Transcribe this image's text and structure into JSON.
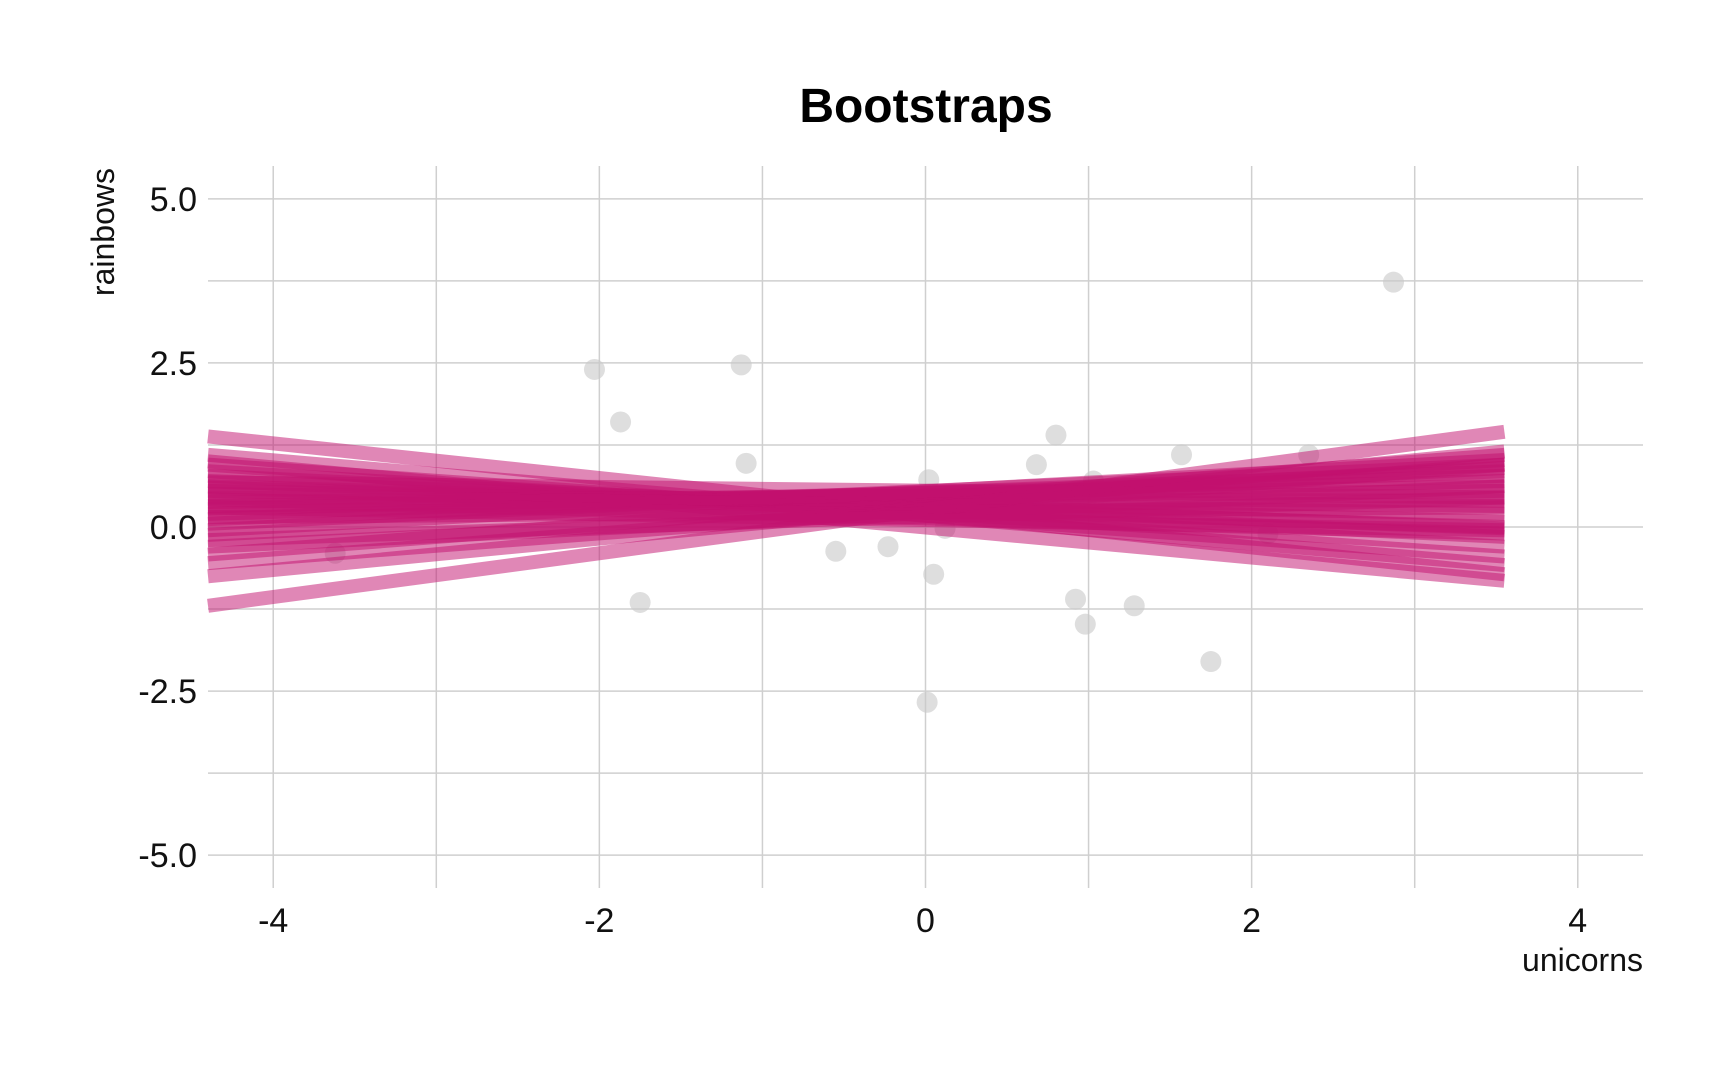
{
  "chart_data": {
    "type": "scatter",
    "title": "Bootstraps",
    "xlabel": "unicorns",
    "ylabel": "rainbows",
    "xlim": [
      -4.4,
      4.4
    ],
    "ylim": [
      -5.5,
      5.5
    ],
    "x_ticks": [
      {
        "value": -4,
        "label": "-4"
      },
      {
        "value": -2,
        "label": "-2"
      },
      {
        "value": 0,
        "label": "0"
      },
      {
        "value": 2,
        "label": "2"
      },
      {
        "value": 4,
        "label": "4"
      }
    ],
    "y_ticks": [
      {
        "value": 5,
        "label": "5.0"
      },
      {
        "value": 2.5,
        "label": "2.5"
      },
      {
        "value": 0,
        "label": "0.0"
      },
      {
        "value": -2.5,
        "label": "-2.5"
      },
      {
        "value": -5,
        "label": "-5.0"
      }
    ],
    "grid": true,
    "colors": {
      "points": "#c8c8c8",
      "lines": "#c2106e",
      "grid": "#cfcfcf"
    },
    "points": [
      {
        "x": -3.62,
        "y": -0.4
      },
      {
        "x": -2.03,
        "y": 2.4
      },
      {
        "x": -1.87,
        "y": 1.6
      },
      {
        "x": -1.75,
        "y": -1.15
      },
      {
        "x": -1.13,
        "y": 2.47
      },
      {
        "x": -1.1,
        "y": 0.97
      },
      {
        "x": -0.55,
        "y": -0.37
      },
      {
        "x": -0.23,
        "y": -0.3
      },
      {
        "x": 0.02,
        "y": 0.72
      },
      {
        "x": 0.05,
        "y": -0.72
      },
      {
        "x": 0.12,
        "y": -0.02
      },
      {
        "x": 0.01,
        "y": -2.67
      },
      {
        "x": 0.68,
        "y": 0.95
      },
      {
        "x": 0.8,
        "y": 1.4
      },
      {
        "x": 0.92,
        "y": -1.1
      },
      {
        "x": 0.98,
        "y": -1.48
      },
      {
        "x": 1.03,
        "y": 0.7
      },
      {
        "x": 1.28,
        "y": -1.2
      },
      {
        "x": 1.57,
        "y": 1.1
      },
      {
        "x": 1.75,
        "y": -2.05
      },
      {
        "x": 2.1,
        "y": -0.1
      },
      {
        "x": 2.35,
        "y": 1.1
      },
      {
        "x": 2.87,
        "y": 3.73
      }
    ],
    "fit_line_x_range": [
      -4.4,
      3.55
    ],
    "bootstrap_lines": [
      {
        "y_start": 1.38,
        "y_end": -0.72
      },
      {
        "y_start": 1.1,
        "y_end": -0.58
      },
      {
        "y_start": 1.0,
        "y_end": -0.82
      },
      {
        "y_start": 0.95,
        "y_end": -0.45
      },
      {
        "y_start": 0.85,
        "y_end": -0.3
      },
      {
        "y_start": 0.78,
        "y_end": -0.15
      },
      {
        "y_start": 0.7,
        "y_end": -0.02
      },
      {
        "y_start": 0.62,
        "y_end": 0.08
      },
      {
        "y_start": 0.55,
        "y_end": 0.2
      },
      {
        "y_start": 0.5,
        "y_end": 0.32
      },
      {
        "y_start": 0.45,
        "y_end": 0.4
      },
      {
        "y_start": 0.38,
        "y_end": 0.55
      },
      {
        "y_start": 0.32,
        "y_end": 0.62
      },
      {
        "y_start": 0.28,
        "y_end": 0.7
      },
      {
        "y_start": 0.2,
        "y_end": 0.78
      },
      {
        "y_start": 0.12,
        "y_end": 0.85
      },
      {
        "y_start": 0.05,
        "y_end": 0.95
      },
      {
        "y_start": -0.05,
        "y_end": 1.02
      },
      {
        "y_start": -0.12,
        "y_end": 0.9
      },
      {
        "y_start": -0.3,
        "y_end": 0.62
      },
      {
        "y_start": -0.42,
        "y_end": 1.1
      },
      {
        "y_start": -0.55,
        "y_end": 0.95
      },
      {
        "y_start": -0.75,
        "y_end": 1.15
      },
      {
        "y_start": -1.2,
        "y_end": 1.45
      },
      {
        "y_start": 0.6,
        "y_end": 0.0
      },
      {
        "y_start": 0.42,
        "y_end": -0.1
      },
      {
        "y_start": 0.15,
        "y_end": 0.3
      },
      {
        "y_start": 0.68,
        "y_end": 0.45
      },
      {
        "y_start": 0.3,
        "y_end": -0.05
      },
      {
        "y_start": -0.2,
        "y_end": 0.45
      }
    ]
  }
}
